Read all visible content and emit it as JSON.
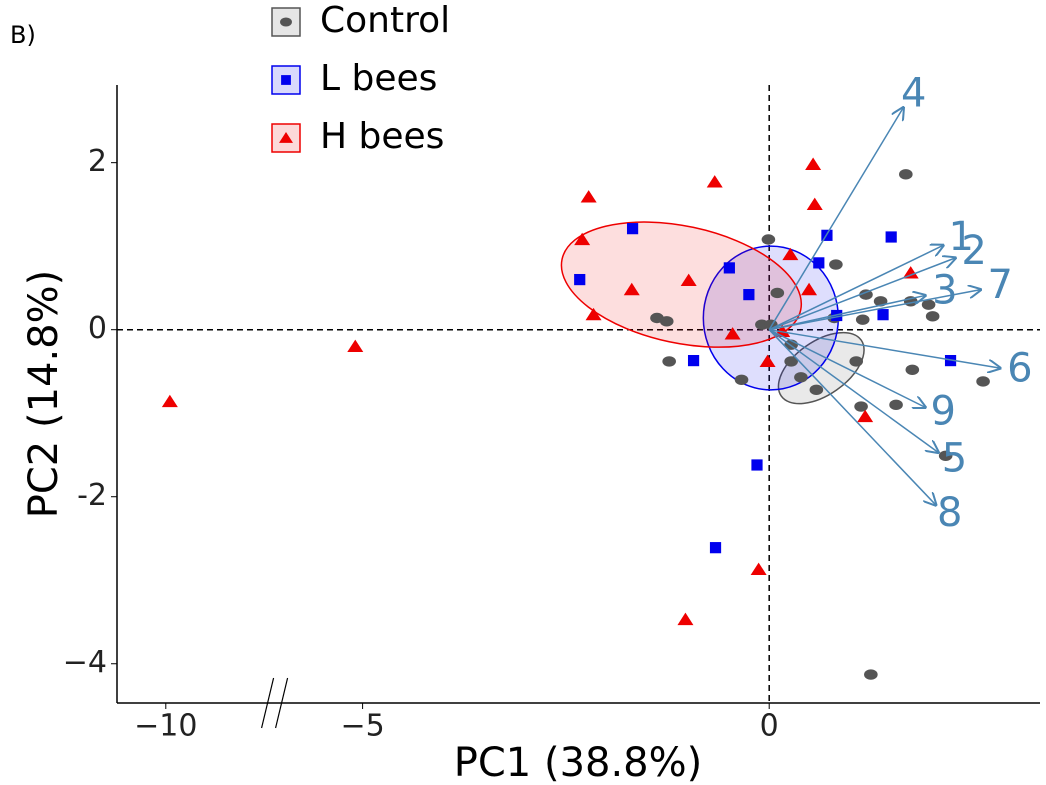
{
  "chart_data": {
    "type": "scatter",
    "panel_label": "B)",
    "x_label": "PC1 (38.8%)",
    "y_label": "PC2 (14.8%)",
    "xlim": [
      -10.6,
      3.33
    ],
    "ylim": [
      -4.47,
      2.93
    ],
    "x_break": [
      -8.65,
      -6.07
    ],
    "xticks": [
      {
        "value": -10,
        "label": "−10"
      },
      {
        "value": -5,
        "label": "−5"
      },
      0
    ],
    "yticks": [
      {
        "value": -4,
        "label": "−4"
      },
      -2,
      0,
      2
    ],
    "reference_lines": {
      "x": 0,
      "y": 0
    },
    "legend_position": "top-left",
    "series": [
      {
        "name": "Control",
        "color": "#555555",
        "marker": "circle",
        "x": [
          1.68,
          -0.01,
          0.82,
          0.1,
          1.19,
          1.37,
          1.74,
          1.96,
          2.01,
          1.15,
          0.8,
          -1.38,
          -1.26,
          -0.09,
          0.02,
          0.27,
          1.07,
          -1.23,
          0.27,
          0.39,
          1.76,
          2.63,
          -0.34,
          0.58,
          1.56,
          1.13,
          2.17,
          1.25
        ],
        "y": [
          1.86,
          1.08,
          0.78,
          0.44,
          0.42,
          0.34,
          0.34,
          0.3,
          0.16,
          0.12,
          0.14,
          0.14,
          0.1,
          0.06,
          0.06,
          -0.18,
          -0.38,
          -0.38,
          -0.38,
          -0.57,
          -0.48,
          -0.62,
          -0.6,
          -0.72,
          -0.9,
          -0.92,
          -1.51,
          -4.13
        ],
        "ellipse": {
          "cx": 0.64,
          "cy": -0.46,
          "rx": 0.6,
          "ry": 0.32,
          "angle": 35
        }
      },
      {
        "name": "L bees",
        "color": "#0000ee",
        "marker": "square",
        "x": [
          -1.68,
          -2.33,
          0.71,
          1.5,
          -0.49,
          0.61,
          -0.25,
          0.83,
          1.4,
          2.23,
          -0.93,
          -0.15,
          -0.66
        ],
        "y": [
          1.21,
          0.6,
          1.13,
          1.11,
          0.74,
          0.8,
          0.42,
          0.17,
          0.18,
          -0.37,
          -0.37,
          -1.62,
          -2.61
        ],
        "ellipse": {
          "cx": 0.02,
          "cy": 0.14,
          "rx": 0.83,
          "ry": 0.86,
          "angle": 0
        }
      },
      {
        "name": "H bees",
        "color": "#ee0000",
        "marker": "triangle",
        "x": [
          -9.95,
          -5.09,
          -2.22,
          -2.3,
          -2.16,
          -1.69,
          -0.99,
          -0.67,
          0.54,
          0.56,
          0.26,
          0.49,
          1.74,
          -0.45,
          0.16,
          -0.02,
          1.18,
          -0.13,
          -1.03
        ],
        "y": [
          -0.86,
          -0.2,
          1.59,
          1.08,
          0.18,
          0.48,
          0.59,
          1.77,
          1.98,
          1.5,
          0.9,
          0.48,
          0.68,
          -0.05,
          -0.02,
          -0.38,
          -1.04,
          -2.87,
          -3.47
        ],
        "ellipse": {
          "cx": -1.08,
          "cy": 0.54,
          "rx": 1.5,
          "ry": 0.7,
          "angle": -12
        }
      }
    ],
    "loadings_color": "#4a86b4",
    "loadings": [
      {
        "label": "1",
        "x": 2.14,
        "y": 1.01
      },
      {
        "label": "2",
        "x": 2.29,
        "y": 0.86
      },
      {
        "label": "3",
        "x": 1.92,
        "y": 0.41
      },
      {
        "label": "4",
        "x": 1.65,
        "y": 2.66
      },
      {
        "label": "5",
        "x": 2.08,
        "y": -1.47
      },
      {
        "label": "6",
        "x": 2.84,
        "y": -0.46
      },
      {
        "label": "7",
        "x": 2.6,
        "y": 0.48
      },
      {
        "label": "8",
        "x": 2.05,
        "y": -2.1
      },
      {
        "label": "9",
        "x": 1.92,
        "y": -0.93
      }
    ]
  }
}
